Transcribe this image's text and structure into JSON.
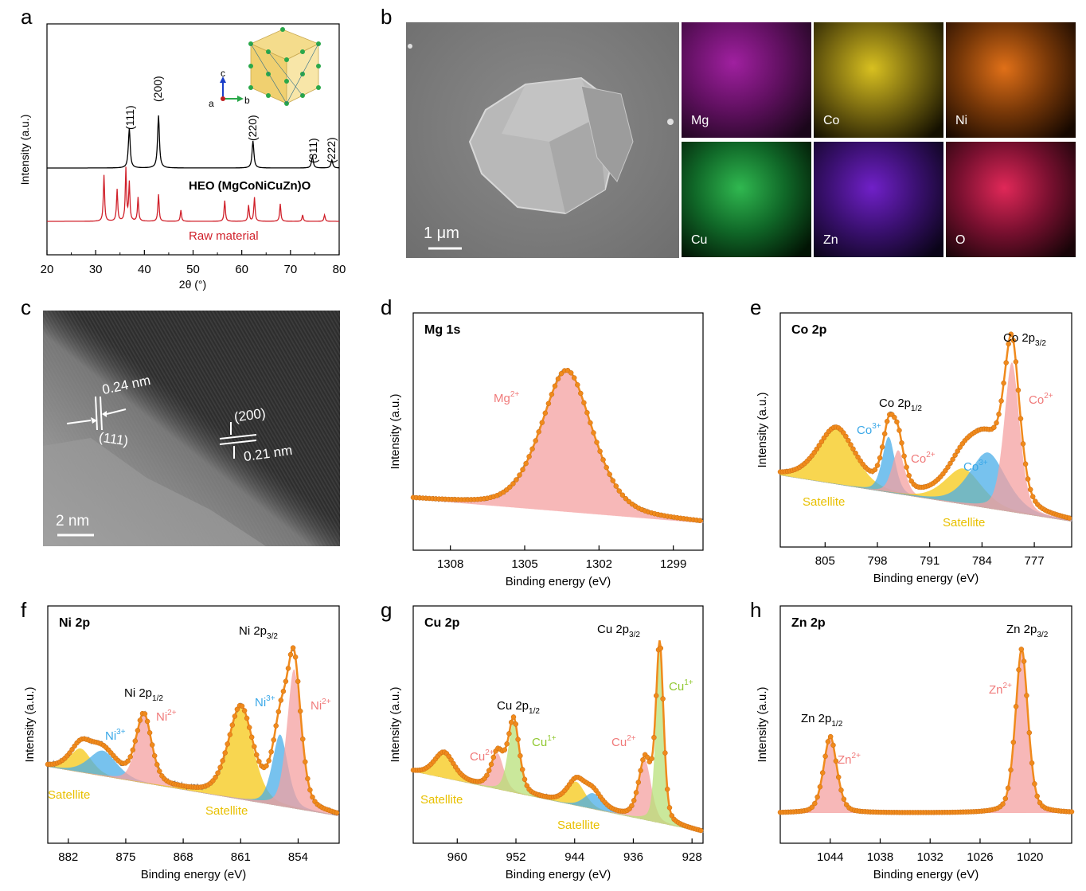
{
  "panels": {
    "a": {
      "label": "a",
      "ylabel": "Intensity (a.u.)",
      "xlabel": "2θ (°)",
      "xticks": [
        "20",
        "30",
        "40",
        "50",
        "60",
        "70",
        "80"
      ],
      "trace_heo": "HEO (MgCoNiCuZn)O",
      "trace_raw": "Raw material",
      "peaks": [
        "(111)",
        "(200)",
        "(220)",
        "(311)",
        "(222)"
      ],
      "axes_c": "c",
      "axes_a": "a",
      "axes_b": "b"
    },
    "b": {
      "label": "b",
      "scalebar": "1 μm",
      "maps": [
        "Mg",
        "Co",
        "Ni",
        "Cu",
        "Zn",
        "O"
      ]
    },
    "c": {
      "label": "c",
      "d1": "0.24 nm",
      "h1": "(111)",
      "h2": "(200)",
      "d2": "0.21 nm",
      "scalebar": "2 nm"
    },
    "d": {
      "label": "d",
      "title": "Mg 1s",
      "species": [
        "Mg",
        "2+"
      ],
      "ylabel": "Intensity (a.u.)",
      "xlabel": "Binding energy (eV)",
      "xticks": [
        "1308",
        "1305",
        "1302",
        "1299"
      ]
    },
    "e": {
      "label": "e",
      "title": "Co 2p",
      "ylabel": "Intensity (a.u.)",
      "xlabel": "Binding energy (eV)",
      "xticks": [
        "805",
        "798",
        "791",
        "784",
        "777"
      ],
      "peak32": [
        "Co 2p",
        "3/2"
      ],
      "peak12": [
        "Co 2p",
        "1/2"
      ],
      "co3a": [
        "Co",
        "3+"
      ],
      "co2a": [
        "Co",
        "2+"
      ],
      "co3b": [
        "Co",
        "3+"
      ],
      "co2b": [
        "Co",
        "2+"
      ],
      "sat1": "Satellite",
      "sat2": "Satellite"
    },
    "f": {
      "label": "f",
      "title": "Ni 2p",
      "ylabel": "Intensity (a.u.)",
      "xlabel": "Binding energy (eV)",
      "xticks": [
        "882",
        "875",
        "868",
        "861",
        "854"
      ],
      "peak32": [
        "Ni 2p",
        "3/2"
      ],
      "peak12": [
        "Ni 2p",
        "1/2"
      ],
      "ni3a": [
        "Ni",
        "3+"
      ],
      "ni2a": [
        "Ni",
        "2+"
      ],
      "ni3b": [
        "Ni",
        "3+"
      ],
      "ni2b": [
        "Ni",
        "2+"
      ],
      "sat1": "Satellite",
      "sat2": "Satellite"
    },
    "g": {
      "label": "g",
      "title": "Cu 2p",
      "ylabel": "Intensity (a.u.)",
      "xlabel": "Binding energy (eV)",
      "xticks": [
        "960",
        "952",
        "944",
        "936",
        "928"
      ],
      "peak32": [
        "Cu 2p",
        "3/2"
      ],
      "peak12": [
        "Cu 2p",
        "1/2"
      ],
      "cu2a": [
        "Cu",
        "2+"
      ],
      "cu1a": [
        "Cu",
        "1+"
      ],
      "cu2b": [
        "Cu",
        "2+"
      ],
      "cu1b": [
        "Cu",
        "1+"
      ],
      "sat1": "Satellite",
      "sat2": "Satellite"
    },
    "h": {
      "label": "h",
      "title": "Zn 2p",
      "ylabel": "Intensity (a.u.)",
      "xlabel": "Binding energy (eV)",
      "xticks": [
        "1044",
        "1038",
        "1032",
        "1026",
        "1020"
      ],
      "peak32": [
        "Zn 2p",
        "3/2"
      ],
      "peak12": [
        "Zn 2p",
        "1/2"
      ],
      "zn2a": [
        "Zn",
        "2+"
      ],
      "zn2b": [
        "Zn",
        "2+"
      ]
    }
  },
  "colors": {
    "fit": "#f08a1c",
    "raw": "#7a7a7a",
    "red_fill": "#f4a0a0",
    "blue_fill": "#4aaee8",
    "yellow_fill": "#f5c816",
    "green_fill": "#b8e07a",
    "heo": "#000000",
    "rawmat": "#d0202a",
    "red_label": "#f07a7a",
    "blue_label": "#3aa8e8",
    "yellow_label": "#e8c000",
    "green_label": "#90c830"
  }
}
